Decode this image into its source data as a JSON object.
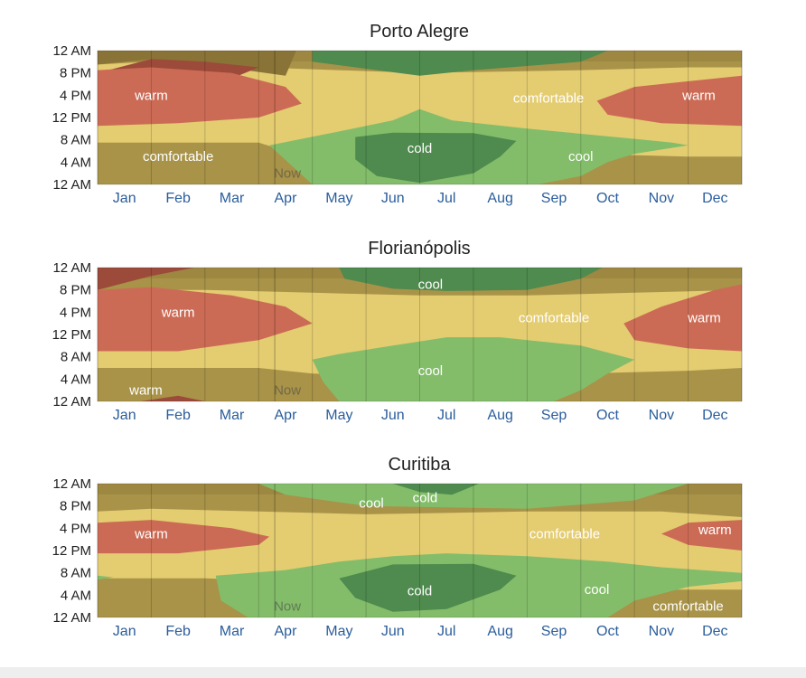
{
  "chart_data": [
    {
      "type": "heatmap",
      "title": "Porto Alegre",
      "x_ticks": [
        "Jan",
        "Feb",
        "Mar",
        "Apr",
        "May",
        "Jun",
        "Jul",
        "Aug",
        "Sep",
        "Oct",
        "Nov",
        "Dec"
      ],
      "y_ticks": [
        "12 AM",
        "8 PM",
        "4 PM",
        "12 PM",
        "8 AM",
        "4 AM",
        "12 AM"
      ],
      "xlim_months": [
        0,
        12
      ],
      "ylim_hours": [
        0,
        24
      ],
      "now_marker": {
        "month": 3.3,
        "label": "Now"
      },
      "zones": [
        {
          "name": "warm",
          "label": "warm",
          "month": 1.0,
          "hour": 16
        },
        {
          "name": "comfortable",
          "label": "comfortable",
          "month": 1.5,
          "hour": 5
        },
        {
          "name": "comfortable",
          "label": "comfortable",
          "month": 8.4,
          "hour": 15.5
        },
        {
          "name": "warm",
          "label": "warm",
          "month": 11.2,
          "hour": 16
        },
        {
          "name": "cold",
          "label": "cold",
          "month": 6.0,
          "hour": 6.5
        },
        {
          "name": "cool",
          "label": "cool",
          "month": 9.0,
          "hour": 5
        }
      ]
    },
    {
      "type": "heatmap",
      "title": "Florianópolis",
      "x_ticks": [
        "Jan",
        "Feb",
        "Mar",
        "Apr",
        "May",
        "Jun",
        "Jul",
        "Aug",
        "Sep",
        "Oct",
        "Nov",
        "Dec"
      ],
      "y_ticks": [
        "12 AM",
        "8 PM",
        "4 PM",
        "12 PM",
        "8 AM",
        "4 AM",
        "12 AM"
      ],
      "xlim_months": [
        0,
        12
      ],
      "ylim_hours": [
        0,
        24
      ],
      "now_marker": {
        "month": 3.3,
        "label": "Now"
      },
      "zones": [
        {
          "name": "warm",
          "label": "warm",
          "month": 1.5,
          "hour": 16
        },
        {
          "name": "cool",
          "label": "cool",
          "month": 6.2,
          "hour": 21
        },
        {
          "name": "comfortable",
          "label": "comfortable",
          "month": 8.5,
          "hour": 15
        },
        {
          "name": "warm",
          "label": "warm",
          "month": 11.3,
          "hour": 15
        },
        {
          "name": "cool",
          "label": "cool",
          "month": 6.2,
          "hour": 5.5
        },
        {
          "name": "warm",
          "label": "warm",
          "month": 0.9,
          "hour": 2
        }
      ]
    },
    {
      "type": "heatmap",
      "title": "Curitiba",
      "x_ticks": [
        "Jan",
        "Feb",
        "Mar",
        "Apr",
        "May",
        "Jun",
        "Jul",
        "Aug",
        "Sep",
        "Oct",
        "Nov",
        "Dec"
      ],
      "y_ticks": [
        "12 AM",
        "8 PM",
        "4 PM",
        "12 PM",
        "8 AM",
        "4 AM",
        "12 AM"
      ],
      "xlim_months": [
        0,
        12
      ],
      "ylim_hours": [
        0,
        24
      ],
      "now_marker": {
        "month": 3.3,
        "label": "Now"
      },
      "zones": [
        {
          "name": "warm",
          "label": "warm",
          "month": 1.0,
          "hour": 15
        },
        {
          "name": "cool",
          "label": "cool",
          "month": 5.1,
          "hour": 20.5
        },
        {
          "name": "cold",
          "label": "cold",
          "month": 6.1,
          "hour": 21.5
        },
        {
          "name": "comfortable",
          "label": "comfortable",
          "month": 8.7,
          "hour": 15
        },
        {
          "name": "warm",
          "label": "warm",
          "month": 11.5,
          "hour": 15.7
        },
        {
          "name": "cold",
          "label": "cold",
          "month": 6.0,
          "hour": 4.8
        },
        {
          "name": "cool",
          "label": "cool",
          "month": 9.3,
          "hour": 5
        },
        {
          "name": "comfortable",
          "label": "comfortable",
          "month": 11.0,
          "hour": 2
        }
      ]
    }
  ],
  "colors": {
    "background": "#a89348",
    "comfortable": "#e4cc71",
    "warm": "#cc6b55",
    "warm_dark": "#9c4a3a",
    "brown_dark": "#8a7336",
    "cool": "#83bd6a",
    "cold": "#4f8a4e",
    "frozen": "#5b7e52"
  }
}
